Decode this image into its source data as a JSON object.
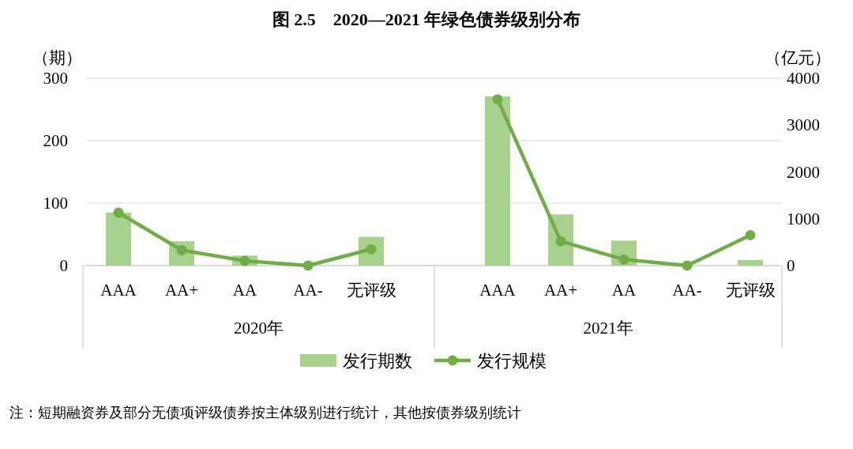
{
  "chart_data": {
    "type": "bar",
    "title": "图 2.5　2020—2021 年绿色债券级别分布",
    "categories": [
      "AAA",
      "AA+",
      "AA",
      "AA-",
      "无评级",
      null,
      "AAA",
      "AA+",
      "AA",
      "AA-",
      "无评级"
    ],
    "series": [
      {
        "name": "发行期数",
        "color": "#a9d18e",
        "values": [
          85,
          39,
          16,
          0,
          46,
          null,
          271,
          82,
          40,
          0,
          9
        ]
      },
      {
        "name": "发行规模",
        "type": "line",
        "axis": "y2",
        "color": "#70ad47",
        "marker": "circle",
        "values": [
          1130,
          330,
          100,
          0,
          350,
          null,
          3550,
          520,
          130,
          0,
          650
        ]
      }
    ],
    "ylabel": "（期）",
    "y2label": "（亿元）",
    "ylim": [
      0,
      300
    ],
    "yticks": [
      0,
      100,
      200,
      300
    ],
    "y2lim": [
      0,
      4000
    ],
    "y2ticks": [
      0,
      1000,
      2000,
      3000,
      4000
    ],
    "grid": "y",
    "legend": "bottom",
    "annotations": [
      "2020年",
      "2021年",
      "注：短期融资券及部分无债项评级债券按主体级别进行统计，其他按债券级别统计"
    ]
  }
}
